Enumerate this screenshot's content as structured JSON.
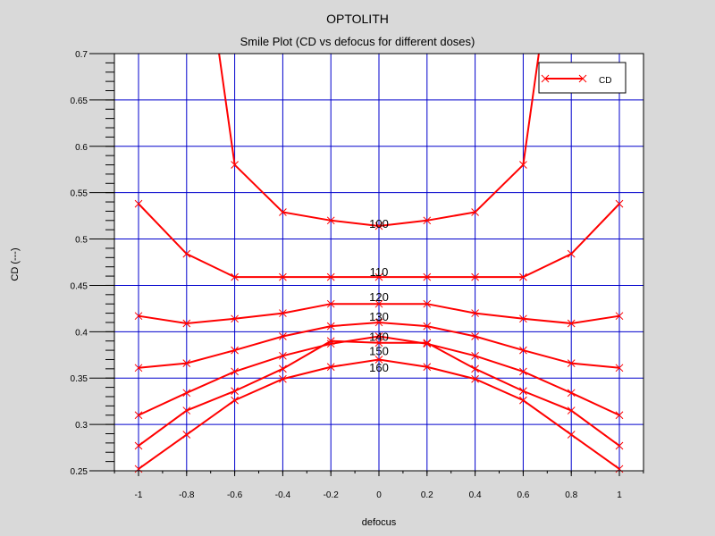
{
  "app_title": "OPTOLITH",
  "chart_data": {
    "type": "line",
    "title": "Smile Plot (CD vs defocus for different doses)",
    "xlabel": "defocus",
    "ylabel": "CD (---)",
    "xlim": [
      -1.1,
      1.1
    ],
    "ylim": [
      0.25,
      0.7
    ],
    "x_ticks": [
      -1,
      -0.8,
      -0.6,
      -0.4,
      -0.2,
      0,
      0.2,
      0.4,
      0.6,
      0.8,
      1
    ],
    "y_ticks": [
      0.25,
      0.3,
      0.35,
      0.4,
      0.45,
      0.5,
      0.55,
      0.6,
      0.65,
      0.7
    ],
    "x_tick_labels": [
      "-1",
      "-0.8",
      "-0.6",
      "-0.4",
      "-0.2",
      "0",
      "0.2",
      "0.4",
      "0.6",
      "0.8",
      "1"
    ],
    "y_tick_labels": [
      "0.25",
      "0.3",
      "0.35",
      "0.4",
      "0.45",
      "0.5",
      "0.55",
      "0.6",
      "0.65",
      "0.7"
    ],
    "grid": true,
    "legend": {
      "position": "top-right",
      "entries": [
        "CD"
      ]
    },
    "colors": {
      "series": "#ff0000",
      "grid": "#0000cc",
      "frame": "#000000",
      "plot_bg": "#ffffff",
      "page_bg": "#d9d9d9"
    },
    "x": [
      -1,
      -0.8,
      -0.6,
      -0.4,
      -0.2,
      0,
      0.2,
      0.4,
      0.6,
      0.8,
      1
    ],
    "series": [
      {
        "label": "100",
        "label_pos": [
          0,
          0.512
        ],
        "values": [
          null,
          null,
          0.58,
          0.529,
          0.52,
          0.514,
          0.52,
          0.529,
          0.58,
          null,
          null
        ],
        "extend_top": true
      },
      {
        "label": "110",
        "label_pos": [
          0,
          0.46
        ],
        "values": [
          0.538,
          0.484,
          0.459,
          0.459,
          0.459,
          0.459,
          0.459,
          0.459,
          0.459,
          0.484,
          0.538
        ]
      },
      {
        "label": "120",
        "label_pos": [
          0,
          0.433
        ],
        "values": [
          0.417,
          0.409,
          0.414,
          0.42,
          0.43,
          0.43,
          0.43,
          0.42,
          0.414,
          0.409,
          0.417
        ]
      },
      {
        "label": "130",
        "label_pos": [
          0,
          0.412
        ],
        "values": [
          0.361,
          0.366,
          0.38,
          0.395,
          0.406,
          0.41,
          0.406,
          0.395,
          0.38,
          0.366,
          0.361
        ]
      },
      {
        "label": "140",
        "label_pos": [
          0,
          0.39
        ],
        "values": [
          0.31,
          0.334,
          0.357,
          0.374,
          0.387,
          0.395,
          0.387,
          0.374,
          0.357,
          0.334,
          0.31
        ]
      },
      {
        "label": "150",
        "label_pos": [
          0,
          0.375
        ],
        "values": [
          0.277,
          0.315,
          0.336,
          0.36,
          0.39,
          0.388,
          0.388,
          0.36,
          0.336,
          0.315,
          0.277
        ]
      },
      {
        "label": "160",
        "label_pos": [
          0,
          0.357
        ],
        "values": [
          0.252,
          0.289,
          0.326,
          0.349,
          0.362,
          0.37,
          0.362,
          0.349,
          0.326,
          0.289,
          0.252
        ]
      }
    ]
  }
}
